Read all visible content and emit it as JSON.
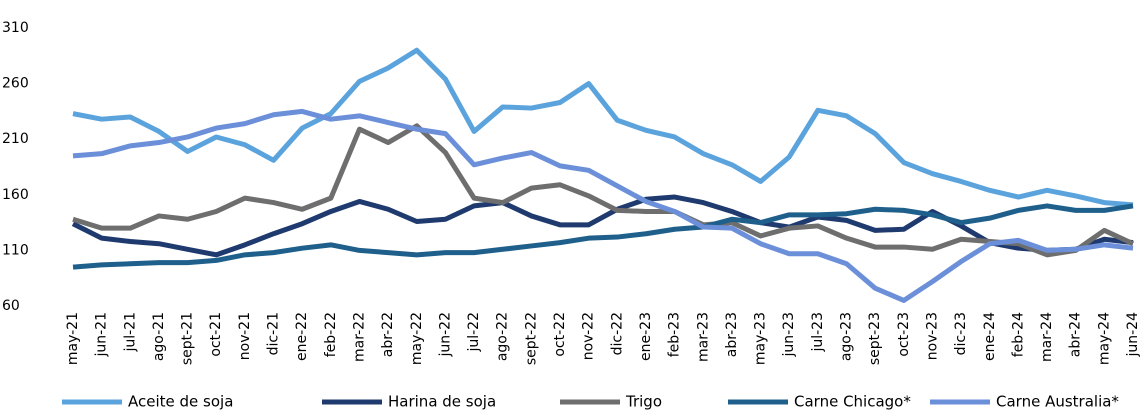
{
  "chart_data": {
    "type": "line",
    "categories": [
      "may-21",
      "jun-21",
      "jul-21",
      "ago-21",
      "sept-21",
      "oct-21",
      "nov-21",
      "dic-21",
      "ene-22",
      "feb-22",
      "mar-22",
      "abr-22",
      "may-22",
      "jun-22",
      "jul-22",
      "ago-22",
      "sept-22",
      "oct-22",
      "nov-22",
      "dic-22",
      "ene-23",
      "feb-23",
      "mar-23",
      "abr-23",
      "may-23",
      "jun-23",
      "jul-23",
      "ago-23",
      "sept-23",
      "oct-23",
      "nov-23",
      "dic-23",
      "ene-24",
      "feb-24",
      "mar-24",
      "abr-24",
      "may-24",
      "jun-24"
    ],
    "series": [
      {
        "name": "Aceite de soja",
        "color": "#5ba3dc",
        "values": [
          233,
          228,
          230,
          217,
          199,
          212,
          205,
          191,
          220,
          233,
          262,
          274,
          290,
          264,
          217,
          239,
          238,
          243,
          260,
          227,
          218,
          212,
          197,
          187,
          172,
          194,
          236,
          231,
          215,
          189,
          179,
          172,
          164,
          158,
          164,
          159,
          153,
          151
        ]
      },
      {
        "name": "Harina de soja",
        "color": "#1f3a6e",
        "values": [
          134,
          121,
          118,
          116,
          111,
          106,
          115,
          125,
          134,
          145,
          154,
          147,
          136,
          138,
          150,
          153,
          141,
          133,
          133,
          147,
          156,
          158,
          153,
          145,
          135,
          131,
          140,
          137,
          128,
          129,
          145,
          132,
          117,
          112,
          110,
          111,
          120,
          117
        ]
      },
      {
        "name": "Trigo",
        "color": "#6e6e6e",
        "values": [
          138,
          130,
          130,
          141,
          138,
          145,
          157,
          153,
          147,
          157,
          219,
          207,
          222,
          198,
          157,
          153,
          166,
          169,
          159,
          146,
          145,
          145,
          133,
          135,
          123,
          130,
          132,
          121,
          113,
          113,
          111,
          120,
          118,
          116,
          106,
          110,
          128,
          116
        ]
      },
      {
        "name": "Carne Chicago*",
        "color": "#1f5f8b",
        "values": [
          95,
          97,
          98,
          99,
          99,
          101,
          106,
          108,
          112,
          115,
          110,
          108,
          106,
          108,
          108,
          111,
          114,
          117,
          121,
          122,
          125,
          129,
          131,
          138,
          135,
          142,
          142,
          143,
          147,
          146,
          142,
          135,
          139,
          146,
          150,
          146,
          146,
          150
        ]
      },
      {
        "name": "Carne Australia*",
        "color": "#6b8fd8",
        "values": [
          195,
          197,
          204,
          207,
          212,
          220,
          224,
          232,
          235,
          228,
          231,
          225,
          219,
          215,
          187,
          193,
          198,
          186,
          182,
          168,
          154,
          145,
          131,
          130,
          116,
          107,
          107,
          98,
          76,
          65,
          82,
          100,
          116,
          119,
          110,
          111,
          115,
          112
        ]
      }
    ],
    "ylim": [
      60,
      310
    ],
    "yticks": [
      60,
      110,
      160,
      210,
      260,
      310
    ],
    "grid": false
  }
}
